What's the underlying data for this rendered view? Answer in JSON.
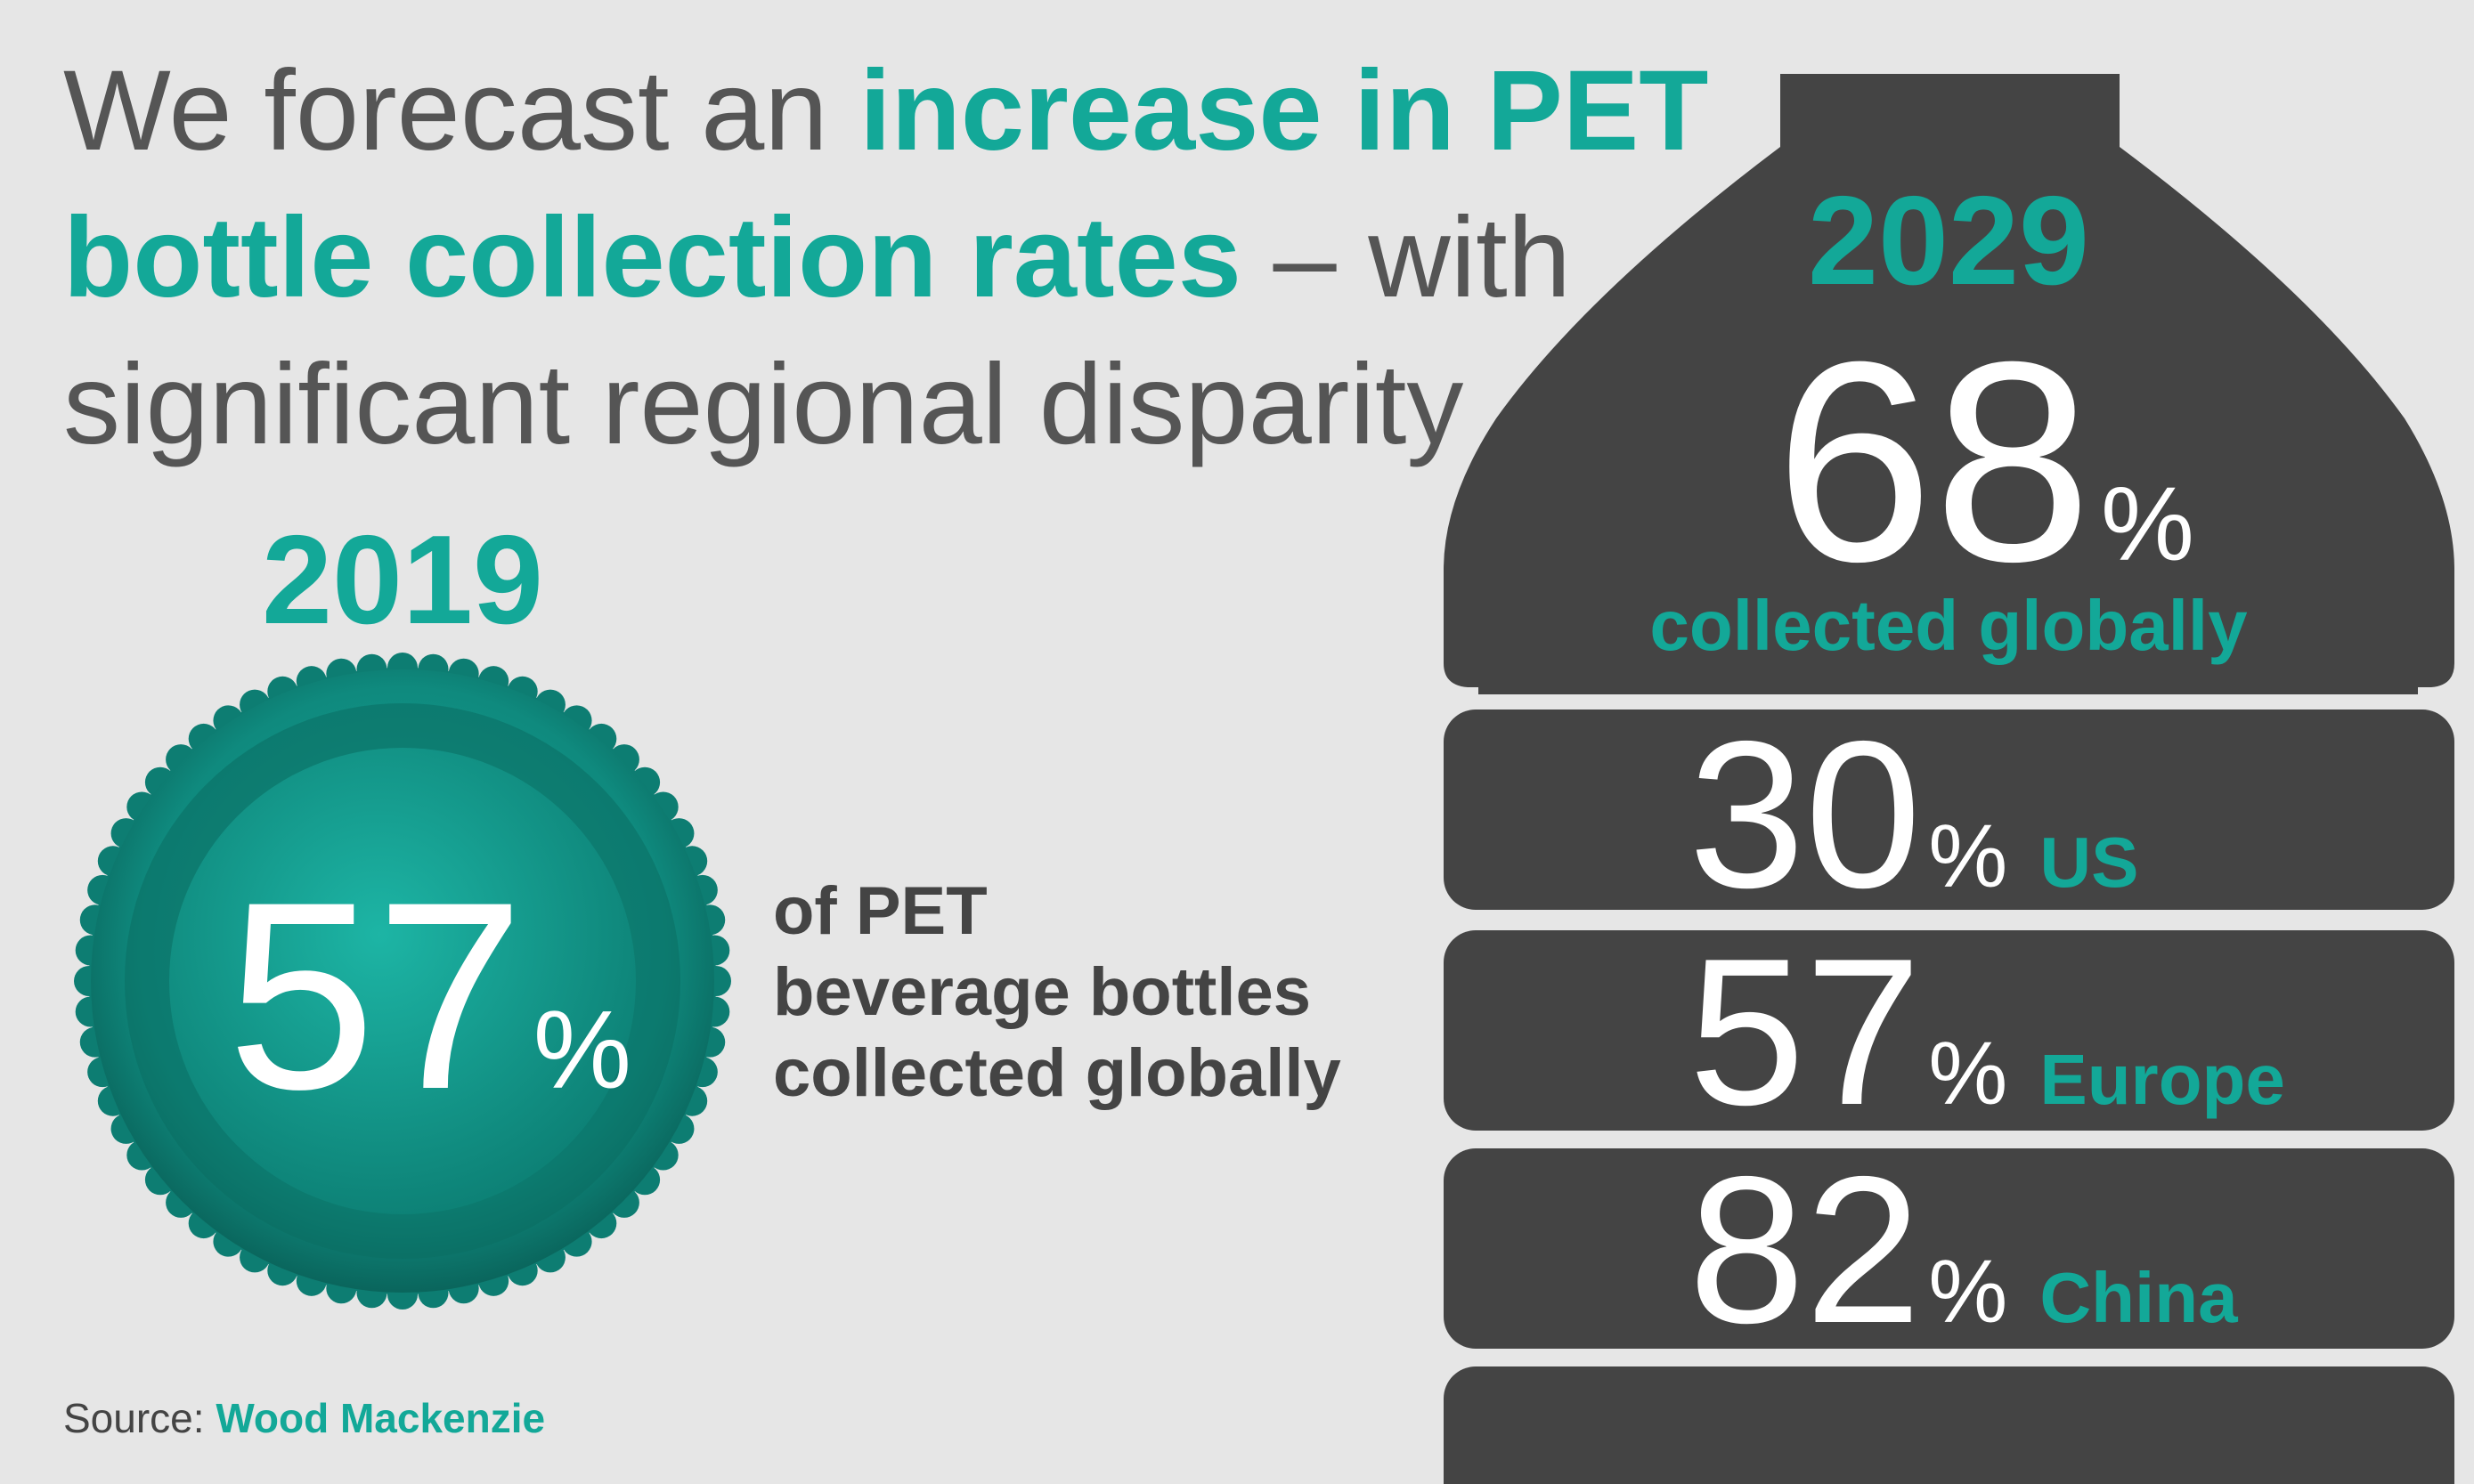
{
  "title": {
    "lines": [
      [
        {
          "text": "We forecast an ",
          "highlight": false
        },
        {
          "text": "increase in PET",
          "highlight": true
        }
      ],
      [
        {
          "text": "bottle collection rates",
          "highlight": true
        },
        {
          "text": " – with",
          "highlight": false
        }
      ],
      [
        {
          "text": "significant regional disparity",
          "highlight": false
        }
      ]
    ]
  },
  "cap": {
    "year": "2019",
    "value": 57,
    "unit": "%",
    "caption": [
      "of PET",
      "beverage bottles",
      "collected globally"
    ]
  },
  "bottle": {
    "year": "2029",
    "global": {
      "value": 68,
      "unit": "%",
      "label": "collected globally"
    },
    "regions": [
      {
        "value": 30,
        "unit": "%",
        "name": "US"
      },
      {
        "value": 57,
        "unit": "%",
        "name": "Europe"
      },
      {
        "value": 82,
        "unit": "%",
        "name": "China"
      }
    ]
  },
  "source": {
    "label": "Source: ",
    "name": "Wood Mackenzie"
  }
}
